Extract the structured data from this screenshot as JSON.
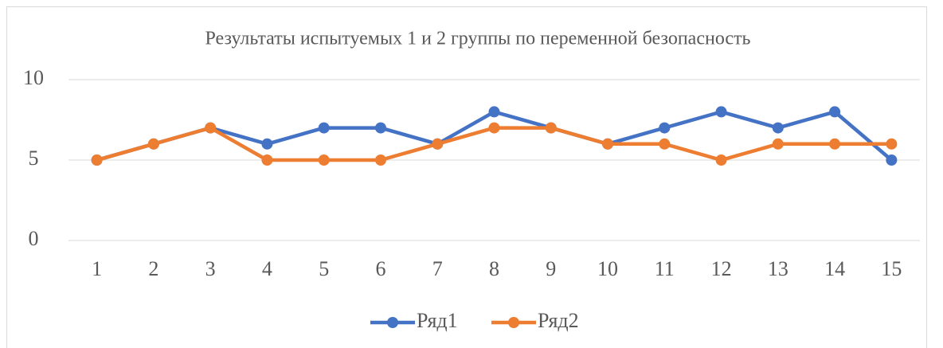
{
  "chart_data": {
    "type": "line",
    "title": "Результаты испытуемых 1 и 2 группы по переменной безопасность",
    "categories": [
      1,
      2,
      3,
      4,
      5,
      6,
      7,
      8,
      9,
      10,
      11,
      12,
      13,
      14,
      15
    ],
    "series": [
      {
        "name": "Ряд1",
        "color": "#4472c4",
        "values": [
          5,
          6,
          7,
          6,
          7,
          7,
          6,
          8,
          7,
          6,
          7,
          8,
          7,
          8,
          5
        ]
      },
      {
        "name": "Ряд2",
        "color": "#ed7d31",
        "values": [
          5,
          6,
          7,
          5,
          5,
          5,
          6,
          7,
          7,
          6,
          6,
          5,
          6,
          6,
          6
        ]
      }
    ],
    "ylim": [
      0,
      10
    ],
    "yticks": [
      0,
      5,
      10
    ],
    "grid": true,
    "legend": "bottom"
  }
}
